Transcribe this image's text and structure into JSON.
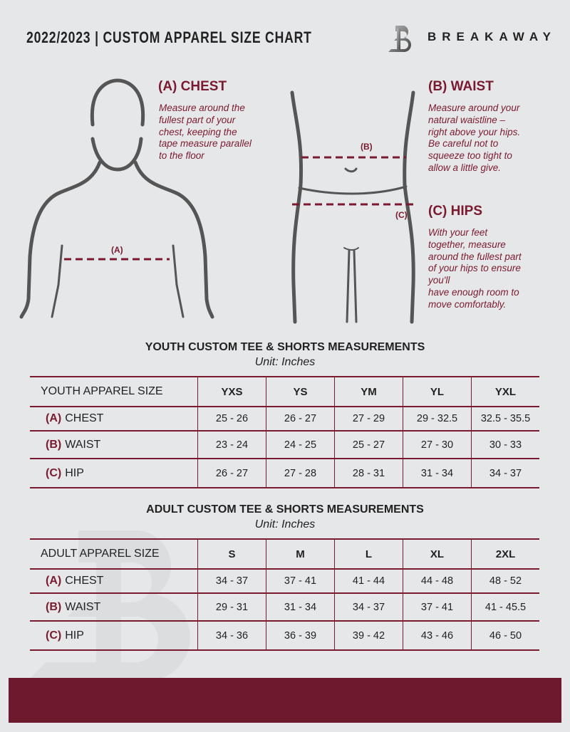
{
  "header": {
    "title": "2022/2023  |  CUSTOM APPAREL SIZE CHART",
    "brand": "BREAKAWAY"
  },
  "chest": {
    "heading": "(A) CHEST",
    "lines": [
      "Measure around the",
      "fullest part of your",
      "chest, keeping the",
      "tape measure parallel",
      "to the floor"
    ],
    "marker": "(A)"
  },
  "waist": {
    "heading": "(B) WAIST",
    "lines": [
      "Measure around your",
      "natural waistline –",
      "right above your hips.",
      "Be careful not to",
      "squeeze too tight to",
      "allow a little give."
    ],
    "marker": "(B)"
  },
  "hips": {
    "heading": "(C) HIPS",
    "lines": [
      "With your feet",
      "together, measure",
      "around the fullest part",
      "of your hips to ensure",
      "you'll",
      "have enough room to",
      "move comfortably."
    ],
    "marker": "(C)"
  },
  "colors": {
    "accent": "#7a1a30",
    "footer": "#6e1a2e",
    "background": "#e6e7e9"
  },
  "tables": [
    {
      "title": "YOUTH CUSTOM TEE & SHORTS MEASUREMENTS",
      "unit": "Unit: Inches",
      "header": "YOUTH APPAREL SIZE",
      "sizes": [
        "YXS",
        "YS",
        "YM",
        "YL",
        "YXL"
      ],
      "rows": [
        {
          "letter": "(A)",
          "label": "CHEST",
          "values": [
            "25 - 26",
            "26 - 27",
            "27 - 29",
            "29 - 32.5",
            "32.5 - 35.5"
          ]
        },
        {
          "letter": "(B)",
          "label": "WAIST",
          "values": [
            "23 - 24",
            "24 - 25",
            "25 - 27",
            "27 - 30",
            "30 - 33"
          ]
        },
        {
          "letter": "(C)",
          "label": "HIP",
          "values": [
            "26 - 27",
            "27 - 28",
            "28 - 31",
            "31 - 34",
            "34 - 37"
          ]
        }
      ]
    },
    {
      "title": "ADULT CUSTOM TEE & SHORTS MEASUREMENTS",
      "unit": "Unit: Inches",
      "header": "ADULT APPAREL SIZE",
      "sizes": [
        "S",
        "M",
        "L",
        "XL",
        "2XL"
      ],
      "rows": [
        {
          "letter": "(A)",
          "label": "CHEST",
          "values": [
            "34 - 37",
            "37 - 41",
            "41 - 44",
            "44 - 48",
            "48 - 52"
          ]
        },
        {
          "letter": "(B)",
          "label": "WAIST",
          "values": [
            "29 - 31",
            "31 - 34",
            "34 - 37",
            "37 - 41",
            "41 - 45.5"
          ]
        },
        {
          "letter": "(C)",
          "label": "HIP",
          "values": [
            "34 - 36",
            "36 - 39",
            "39 - 42",
            "43 - 46",
            "46 - 50"
          ]
        }
      ]
    }
  ]
}
